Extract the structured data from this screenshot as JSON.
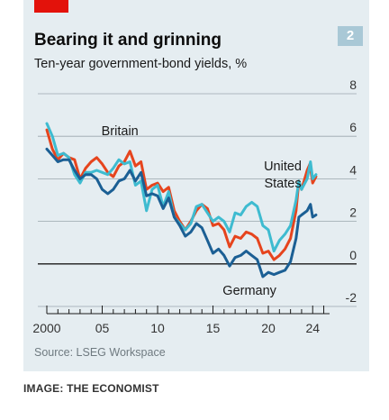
{
  "badge": "2",
  "source": "Source: LSEG Workspace",
  "caption": "IMAGE: THE ECONOMIST",
  "colors": {
    "background": "#e5edf1",
    "accent_tab": "#e3120b",
    "britain": "#e6441d",
    "united_states": "#3ebbd0",
    "germany": "#1b5f94",
    "gridline": "#9aa6ad",
    "zero_line": "#1a1a1a"
  },
  "chart_data": {
    "type": "line",
    "title": "Bearing it and grinning",
    "subtitle": "Ten-year government-bond yields, %",
    "xlim": [
      2000,
      2025.2
    ],
    "ylim": [
      -2,
      8
    ],
    "y_axis_side": "right",
    "y_ticks": [
      -2,
      0,
      2,
      4,
      6,
      8
    ],
    "x_tick_labels": [
      {
        "x": 2000,
        "label": "2000"
      },
      {
        "x": 2005,
        "label": "05"
      },
      {
        "x": 2010,
        "label": "10"
      },
      {
        "x": 2015,
        "label": "15"
      },
      {
        "x": 2020,
        "label": "20"
      },
      {
        "x": 2024,
        "label": "24"
      }
    ],
    "series": [
      {
        "name": "Britain",
        "color_key": "britain",
        "points": [
          [
            2000,
            6.3
          ],
          [
            2000.5,
            5.4
          ],
          [
            2001,
            4.9
          ],
          [
            2001.5,
            5.2
          ],
          [
            2002,
            5.0
          ],
          [
            2002.5,
            4.9
          ],
          [
            2003,
            4.0
          ],
          [
            2003.5,
            4.5
          ],
          [
            2004,
            4.8
          ],
          [
            2004.5,
            5.0
          ],
          [
            2005,
            4.7
          ],
          [
            2005.5,
            4.3
          ],
          [
            2006,
            4.1
          ],
          [
            2006.5,
            4.6
          ],
          [
            2007,
            4.8
          ],
          [
            2007.5,
            5.3
          ],
          [
            2008,
            4.6
          ],
          [
            2008.5,
            4.8
          ],
          [
            2009,
            3.5
          ],
          [
            2009.5,
            3.7
          ],
          [
            2010,
            3.8
          ],
          [
            2010.5,
            3.4
          ],
          [
            2011,
            3.6
          ],
          [
            2011.5,
            2.5
          ],
          [
            2012,
            2.0
          ],
          [
            2012.5,
            1.6
          ],
          [
            2013,
            2.0
          ],
          [
            2013.5,
            2.5
          ],
          [
            2014,
            2.8
          ],
          [
            2014.5,
            2.6
          ],
          [
            2015,
            1.8
          ],
          [
            2015.5,
            1.9
          ],
          [
            2016,
            1.6
          ],
          [
            2016.5,
            0.8
          ],
          [
            2017,
            1.3
          ],
          [
            2017.5,
            1.2
          ],
          [
            2018,
            1.5
          ],
          [
            2018.5,
            1.4
          ],
          [
            2019,
            1.2
          ],
          [
            2019.5,
            0.5
          ],
          [
            2020,
            0.6
          ],
          [
            2020.5,
            0.2
          ],
          [
            2021,
            0.4
          ],
          [
            2021.5,
            0.7
          ],
          [
            2022,
            1.2
          ],
          [
            2022.5,
            2.5
          ],
          [
            2022.75,
            3.9
          ],
          [
            2023,
            3.5
          ],
          [
            2023.5,
            4.4
          ],
          [
            2023.75,
            4.7
          ],
          [
            2024,
            3.8
          ],
          [
            2024.3,
            4.1
          ]
        ]
      },
      {
        "name": "United States",
        "color_key": "united_states",
        "points": [
          [
            2000,
            6.6
          ],
          [
            2000.5,
            6.0
          ],
          [
            2001,
            5.1
          ],
          [
            2001.5,
            5.2
          ],
          [
            2002,
            5.0
          ],
          [
            2002.5,
            4.2
          ],
          [
            2003,
            3.8
          ],
          [
            2003.5,
            4.3
          ],
          [
            2004,
            4.3
          ],
          [
            2004.5,
            4.4
          ],
          [
            2005,
            4.3
          ],
          [
            2005.5,
            4.2
          ],
          [
            2006,
            4.5
          ],
          [
            2006.5,
            4.9
          ],
          [
            2007,
            4.7
          ],
          [
            2007.5,
            4.8
          ],
          [
            2008,
            3.7
          ],
          [
            2008.5,
            3.9
          ],
          [
            2009,
            2.5
          ],
          [
            2009.5,
            3.5
          ],
          [
            2010,
            3.7
          ],
          [
            2010.5,
            2.7
          ],
          [
            2011,
            3.4
          ],
          [
            2011.5,
            2.2
          ],
          [
            2012,
            1.9
          ],
          [
            2012.5,
            1.6
          ],
          [
            2013,
            1.9
          ],
          [
            2013.5,
            2.7
          ],
          [
            2014,
            2.8
          ],
          [
            2014.5,
            2.4
          ],
          [
            2015,
            2.0
          ],
          [
            2015.5,
            2.2
          ],
          [
            2016,
            2.0
          ],
          [
            2016.5,
            1.5
          ],
          [
            2017,
            2.4
          ],
          [
            2017.5,
            2.3
          ],
          [
            2018,
            2.7
          ],
          [
            2018.5,
            2.9
          ],
          [
            2019,
            2.7
          ],
          [
            2019.5,
            1.8
          ],
          [
            2020,
            1.6
          ],
          [
            2020.5,
            0.6
          ],
          [
            2021,
            1.1
          ],
          [
            2021.5,
            1.4
          ],
          [
            2022,
            1.8
          ],
          [
            2022.5,
            3.0
          ],
          [
            2022.75,
            3.9
          ],
          [
            2023,
            3.5
          ],
          [
            2023.5,
            4.0
          ],
          [
            2023.8,
            4.8
          ],
          [
            2024,
            4.0
          ],
          [
            2024.3,
            4.2
          ]
        ]
      },
      {
        "name": "Germany",
        "color_key": "germany",
        "points": [
          [
            2000,
            5.4
          ],
          [
            2000.5,
            5.1
          ],
          [
            2001,
            4.8
          ],
          [
            2001.5,
            4.9
          ],
          [
            2002,
            4.9
          ],
          [
            2002.5,
            4.4
          ],
          [
            2003,
            4.0
          ],
          [
            2003.5,
            4.2
          ],
          [
            2004,
            4.2
          ],
          [
            2004.5,
            4.0
          ],
          [
            2005,
            3.5
          ],
          [
            2005.5,
            3.3
          ],
          [
            2006,
            3.5
          ],
          [
            2006.5,
            3.9
          ],
          [
            2007,
            4.0
          ],
          [
            2007.5,
            4.4
          ],
          [
            2008,
            3.9
          ],
          [
            2008.5,
            4.3
          ],
          [
            2009,
            3.2
          ],
          [
            2009.5,
            3.3
          ],
          [
            2010,
            3.2
          ],
          [
            2010.5,
            2.6
          ],
          [
            2011,
            3.1
          ],
          [
            2011.5,
            2.2
          ],
          [
            2012,
            1.8
          ],
          [
            2012.5,
            1.3
          ],
          [
            2013,
            1.5
          ],
          [
            2013.5,
            1.9
          ],
          [
            2014,
            1.7
          ],
          [
            2014.5,
            1.1
          ],
          [
            2015,
            0.5
          ],
          [
            2015.5,
            0.7
          ],
          [
            2016,
            0.4
          ],
          [
            2016.5,
            -0.1
          ],
          [
            2017,
            0.3
          ],
          [
            2017.5,
            0.4
          ],
          [
            2018,
            0.6
          ],
          [
            2018.5,
            0.4
          ],
          [
            2019,
            0.2
          ],
          [
            2019.5,
            -0.6
          ],
          [
            2020,
            -0.4
          ],
          [
            2020.5,
            -0.5
          ],
          [
            2021,
            -0.4
          ],
          [
            2021.5,
            -0.3
          ],
          [
            2022,
            0.1
          ],
          [
            2022.5,
            1.2
          ],
          [
            2022.75,
            2.2
          ],
          [
            2023,
            2.3
          ],
          [
            2023.5,
            2.5
          ],
          [
            2023.8,
            2.8
          ],
          [
            2024,
            2.2
          ],
          [
            2024.3,
            2.3
          ]
        ]
      }
    ],
    "annotations": [
      {
        "text": "Britain",
        "series": "Britain",
        "x": 2006.6,
        "y": 6.05
      },
      {
        "text": "United",
        "series": "United States",
        "x": 2021.3,
        "y": 4.4
      },
      {
        "text": "States",
        "series": "United States",
        "x": 2021.3,
        "y": 3.6
      },
      {
        "text": "Germany",
        "series": "Germany",
        "x": 2018.3,
        "y": -1.45
      }
    ]
  }
}
